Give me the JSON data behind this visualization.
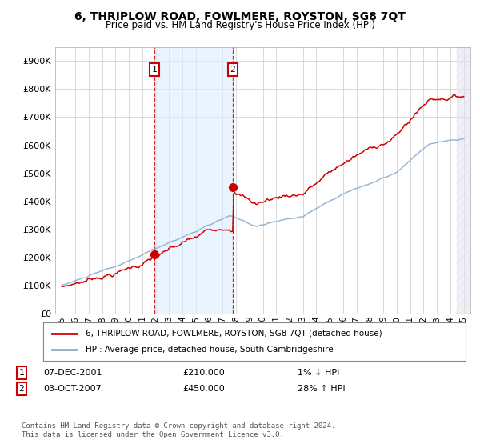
{
  "title": "6, THRIPLOW ROAD, FOWLMERE, ROYSTON, SG8 7QT",
  "subtitle": "Price paid vs. HM Land Registry's House Price Index (HPI)",
  "legend_line1": "6, THRIPLOW ROAD, FOWLMERE, ROYSTON, SG8 7QT (detached house)",
  "legend_line2": "HPI: Average price, detached house, South Cambridgeshire",
  "annotation1_date": "07-DEC-2001",
  "annotation1_price": "£210,000",
  "annotation1_hpi": "1% ↓ HPI",
  "annotation2_date": "03-OCT-2007",
  "annotation2_price": "£450,000",
  "annotation2_hpi": "28% ↑ HPI",
  "footnote": "Contains HM Land Registry data © Crown copyright and database right 2024.\nThis data is licensed under the Open Government Licence v3.0.",
  "purchase1_x": 2001.92,
  "purchase1_y": 210000,
  "purchase2_x": 2007.75,
  "purchase2_y": 450000,
  "vline1_x": 2001.92,
  "vline2_x": 2007.75,
  "red_line_color": "#cc0000",
  "blue_line_color": "#88aacc",
  "highlight_color": "#ddeeff",
  "vline_color": "#cc0000",
  "ylim": [
    0,
    950000
  ],
  "xlim": [
    1994.5,
    2025.5
  ],
  "background_color": "#ffffff",
  "grid_color": "#cccccc"
}
